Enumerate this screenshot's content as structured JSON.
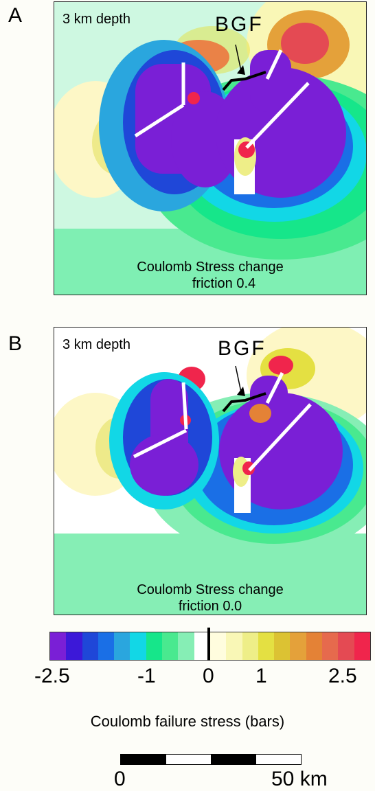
{
  "panels": [
    {
      "letter": "A",
      "depth": "3 km depth",
      "fault": "BGF",
      "caption1": "Coulomb Stress change",
      "caption2": "friction 0.4"
    },
    {
      "letter": "B",
      "depth": "3 km depth",
      "fault": "BGF",
      "caption1": "Coulomb Stress change",
      "caption2": "friction 0.0"
    }
  ],
  "colorbar": {
    "colors": [
      "#7a1fd6",
      "#3c18d8",
      "#1f47d8",
      "#1a6fe6",
      "#2aa6de",
      "#12d7e6",
      "#16e68a",
      "#49e98f",
      "#86eeb5",
      "#ffffff",
      "#fffdde",
      "#f9f7b6",
      "#eeee88",
      "#e4e042",
      "#dcc233",
      "#e4a13a",
      "#e48236",
      "#e66a4d",
      "#e44a53",
      "#f0254c"
    ],
    "ticks": [
      "-2.5",
      "-1",
      "0",
      "1",
      "2.5"
    ],
    "title": "Coulomb failure stress (bars)"
  },
  "scale": {
    "start": "0",
    "end": "50 km"
  }
}
